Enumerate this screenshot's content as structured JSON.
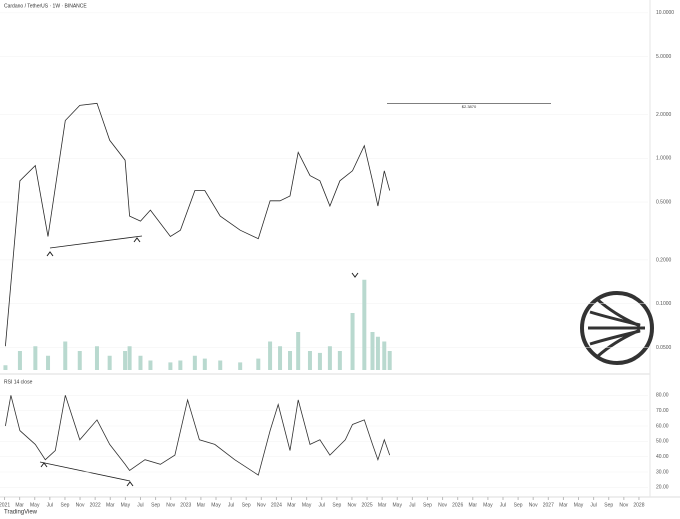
{
  "chart_data": [
    {
      "type": "line",
      "title": "Cardano / TetherUS · 1W · BINANCE",
      "log_scale": true,
      "color": "#2b2b2b",
      "x": [
        2021.01,
        2021.17,
        2021.34,
        2021.48,
        2021.67,
        2021.83,
        2022.02,
        2022.16,
        2022.33,
        2022.38,
        2022.5,
        2022.61,
        2022.83,
        2022.94,
        2023.1,
        2023.21,
        2023.38,
        2023.6,
        2023.8,
        2023.93,
        2024.04,
        2024.15,
        2024.24,
        2024.37,
        2024.48,
        2024.59,
        2024.7,
        2024.84,
        2024.97,
        2025.06,
        2025.12,
        2025.19,
        2025.25
      ],
      "values": [
        0.051,
        0.7,
        0.89,
        0.29,
        1.82,
        2.31,
        2.39,
        1.33,
        0.97,
        0.4,
        0.37,
        0.44,
        0.29,
        0.32,
        0.6,
        0.6,
        0.4,
        0.32,
        0.28,
        0.51,
        0.51,
        0.55,
        1.1,
        0.76,
        0.7,
        0.47,
        0.7,
        0.82,
        1.22,
        0.7,
        0.47,
        0.82,
        0.6
      ],
      "xlim": [
        2020.95,
        2028.1
      ],
      "ylim": [
        0.035,
        10.8
      ],
      "yticks": [
        {
          "value": 10,
          "label": "10.0000"
        },
        {
          "value": 5,
          "label": "5.0000"
        },
        {
          "value": 2,
          "label": "2.0000"
        },
        {
          "value": 1,
          "label": "1.0000"
        },
        {
          "value": 0.5,
          "label": "0.5000"
        },
        {
          "value": 0.2,
          "label": "0.2000"
        },
        {
          "value": 0.1,
          "label": "0.1000"
        },
        {
          "value": 0.05,
          "label": "0.0500"
        }
      ],
      "annotations": [
        {
          "value": 2.387,
          "label": "$2.3870"
        }
      ]
    },
    {
      "type": "bar",
      "color": "#b9d9cf",
      "x": [
        2021.01,
        2021.17,
        2021.34,
        2021.48,
        2021.67,
        2021.83,
        2022.02,
        2022.16,
        2022.33,
        2022.38,
        2022.5,
        2022.61,
        2022.83,
        2022.94,
        2023.1,
        2023.21,
        2023.38,
        2023.6,
        2023.8,
        2023.93,
        2024.04,
        2024.15,
        2024.24,
        2024.37,
        2024.48,
        2024.59,
        2024.7,
        2024.84,
        2024.97,
        2025.06,
        2025.12,
        2025.19,
        2025.25
      ],
      "values": [
        5,
        20,
        25,
        15,
        30,
        20,
        25,
        15,
        20,
        25,
        15,
        10,
        8,
        10,
        15,
        12,
        10,
        8,
        12,
        30,
        25,
        20,
        40,
        20,
        18,
        25,
        20,
        60,
        95,
        40,
        35,
        30,
        20
      ],
      "xlim": [
        2020.95,
        2028.1
      ],
      "ylim": [
        0,
        100
      ]
    },
    {
      "type": "line",
      "title": "RSI 14 close",
      "color": "#333333",
      "x": [
        2021.01,
        2021.07,
        2021.17,
        2021.34,
        2021.45,
        2021.56,
        2021.67,
        2021.83,
        2022.02,
        2022.16,
        2022.33,
        2022.38,
        2022.55,
        2022.72,
        2022.88,
        2023.02,
        2023.15,
        2023.32,
        2023.54,
        2023.8,
        2023.93,
        2024.02,
        2024.15,
        2024.24,
        2024.37,
        2024.48,
        2024.59,
        2024.76,
        2024.84,
        2024.97,
        2025.06,
        2025.12,
        2025.19,
        2025.25
      ],
      "values": [
        60,
        80,
        57,
        48,
        38,
        44,
        80,
        51,
        64,
        48,
        35,
        31,
        38,
        35,
        41,
        77,
        51,
        48,
        38,
        28,
        57,
        74,
        44,
        77,
        48,
        51,
        41,
        51,
        61,
        64,
        48,
        38,
        51,
        41
      ],
      "xlim": [
        2020.95,
        2028.1
      ],
      "ylim": [
        15,
        90
      ],
      "yticks": [
        {
          "value": 80,
          "label": "80.00"
        },
        {
          "value": 70,
          "label": "70.00"
        },
        {
          "value": 60,
          "label": "60.00"
        },
        {
          "value": 50,
          "label": "50.00"
        },
        {
          "value": 40,
          "label": "40.00"
        },
        {
          "value": 30,
          "label": "30.00"
        },
        {
          "value": 20,
          "label": "20.00"
        }
      ],
      "xticks": [
        {
          "value": 2021.0,
          "label": "2021"
        },
        {
          "value": 2021.1667,
          "label": "Mar"
        },
        {
          "value": 2021.3333,
          "label": "May"
        },
        {
          "value": 2021.5,
          "label": "Jul"
        },
        {
          "value": 2021.6667,
          "label": "Sep"
        },
        {
          "value": 2021.8333,
          "label": "Nov"
        },
        {
          "value": 2022.0,
          "label": "2022"
        },
        {
          "value": 2022.1667,
          "label": "Mar"
        },
        {
          "value": 2022.3333,
          "label": "May"
        },
        {
          "value": 2022.5,
          "label": "Jul"
        },
        {
          "value": 2022.6667,
          "label": "Sep"
        },
        {
          "value": 2022.8333,
          "label": "Nov"
        },
        {
          "value": 2023.0,
          "label": "2023"
        },
        {
          "value": 2023.1667,
          "label": "Mar"
        },
        {
          "value": 2023.3333,
          "label": "May"
        },
        {
          "value": 2023.5,
          "label": "Jul"
        },
        {
          "value": 2023.6667,
          "label": "Sep"
        },
        {
          "value": 2023.8333,
          "label": "Nov"
        },
        {
          "value": 2024.0,
          "label": "2024"
        },
        {
          "value": 2024.1667,
          "label": "Mar"
        },
        {
          "value": 2024.3333,
          "label": "May"
        },
        {
          "value": 2024.5,
          "label": "Jul"
        },
        {
          "value": 2024.6667,
          "label": "Sep"
        },
        {
          "value": 2024.8333,
          "label": "Nov"
        },
        {
          "value": 2025.0,
          "label": "2025"
        },
        {
          "value": 2025.1667,
          "label": "Mar"
        },
        {
          "value": 2025.3333,
          "label": "May"
        },
        {
          "value": 2025.5,
          "label": "Jul"
        },
        {
          "value": 2025.6667,
          "label": "Sep"
        },
        {
          "value": 2025.8333,
          "label": "Nov"
        },
        {
          "value": 2026.0,
          "label": "2026"
        },
        {
          "value": 2026.1667,
          "label": "Mar"
        },
        {
          "value": 2026.3333,
          "label": "May"
        },
        {
          "value": 2026.5,
          "label": "Jul"
        },
        {
          "value": 2026.6667,
          "label": "Sep"
        },
        {
          "value": 2026.8333,
          "label": "Nov"
        },
        {
          "value": 2027.0,
          "label": "2027"
        },
        {
          "value": 2027.1667,
          "label": "Mar"
        },
        {
          "value": 2027.3333,
          "label": "May"
        },
        {
          "value": 2027.5,
          "label": "Jul"
        },
        {
          "value": 2027.6667,
          "label": "Sep"
        },
        {
          "value": 2027.8333,
          "label": "Nov"
        },
        {
          "value": 2028.0,
          "label": "2028"
        }
      ]
    }
  ],
  "footer": "TradingView"
}
